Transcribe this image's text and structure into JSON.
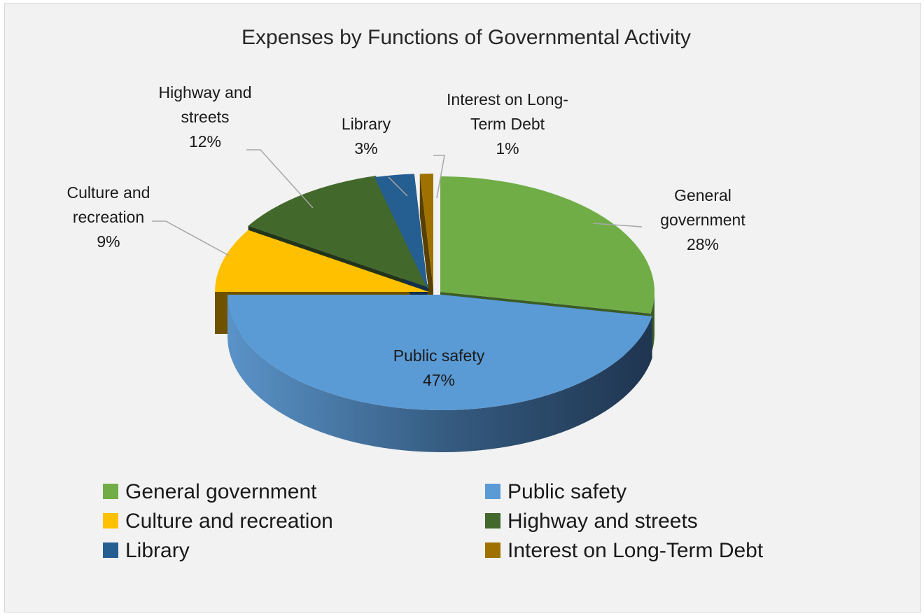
{
  "chart_data": {
    "type": "pie",
    "title": "Expenses by Functions of Governmental Activity",
    "slices": [
      {
        "label": "General government",
        "value": 28,
        "display": "28%",
        "color": "#70ad47",
        "dark": "#3b5d25",
        "label_lines": [
          "General",
          "government",
          "28%"
        ]
      },
      {
        "label": "Public safety",
        "value": 47,
        "display": "47%",
        "color": "#5b9bd5",
        "dark": "#233d58",
        "label_lines": [
          "Public safety",
          "47%"
        ]
      },
      {
        "label": "Culture and recreation",
        "value": 9,
        "display": "9%",
        "color": "#ffc000",
        "dark": "#6f5200",
        "label_lines": [
          "Culture and",
          "recreation",
          "9%"
        ]
      },
      {
        "label": "Highway and streets",
        "value": 12,
        "display": "12%",
        "color": "#43682b",
        "dark": "#22351a",
        "label_lines": [
          "Highway and",
          "streets",
          "12%"
        ]
      },
      {
        "label": "Library",
        "value": 3,
        "display": "3%",
        "color": "#255e91",
        "dark": "#12304b",
        "label_lines": [
          "Library",
          "3%"
        ]
      },
      {
        "label": "Interest on Long-Term Debt",
        "value": 1,
        "display": "1%",
        "color": "#9e7100",
        "dark": "#574000",
        "label_lines": [
          "Interest on Long-",
          "Term Debt",
          "1%"
        ]
      }
    ],
    "legend": {
      "placement": "bottom",
      "items": [
        "General government",
        "Public safety",
        "Culture and recreation",
        "Highway and streets",
        "Library",
        "Interest on Long-Term Debt"
      ]
    }
  }
}
